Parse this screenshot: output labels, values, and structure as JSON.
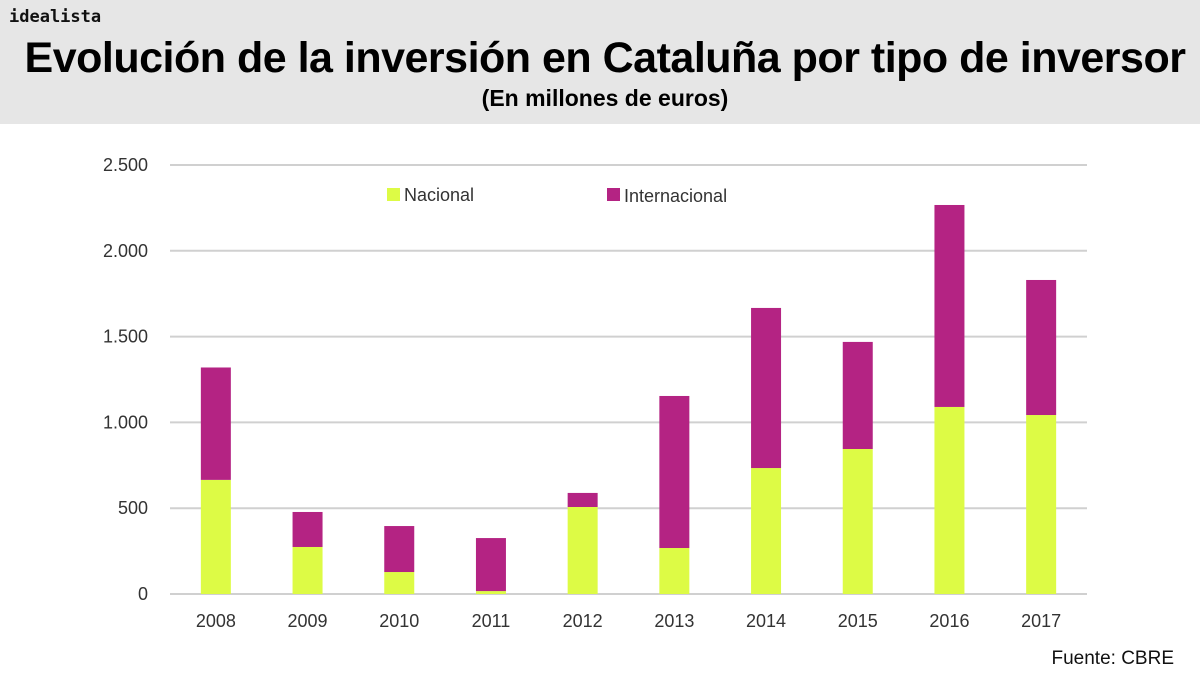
{
  "logo": "idealista",
  "header": {
    "title": "Evolución de la inversión en Cataluña por tipo de inversor",
    "subtitle": "(En millones de euros)"
  },
  "source": "Fuente: CBRE",
  "chart_data": {
    "type": "bar",
    "stacked": true,
    "title": "Evolución de la inversión en Cataluña por tipo de inversor",
    "subtitle": "(En millones de euros)",
    "categories": [
      "2008",
      "2009",
      "2010",
      "2011",
      "2012",
      "2013",
      "2014",
      "2015",
      "2016",
      "2017"
    ],
    "series": [
      {
        "name": "Nacional",
        "color": "#ddfb45",
        "values": [
          665,
          274,
          128,
          17,
          507,
          268,
          734,
          845,
          1090,
          1043
        ]
      },
      {
        "name": "Internacional",
        "color": "#b42383",
        "values": [
          655,
          204,
          268,
          309,
          82,
          886,
          933,
          624,
          1177,
          787
        ]
      }
    ],
    "ylim": [
      0,
      2500
    ],
    "yticks": [
      0,
      500,
      1000,
      1500,
      2000,
      2500
    ],
    "ytick_labels": [
      "0",
      "500",
      "1.000",
      "1.500",
      "2.000",
      "2.500"
    ],
    "grid": true,
    "legend": "top"
  }
}
